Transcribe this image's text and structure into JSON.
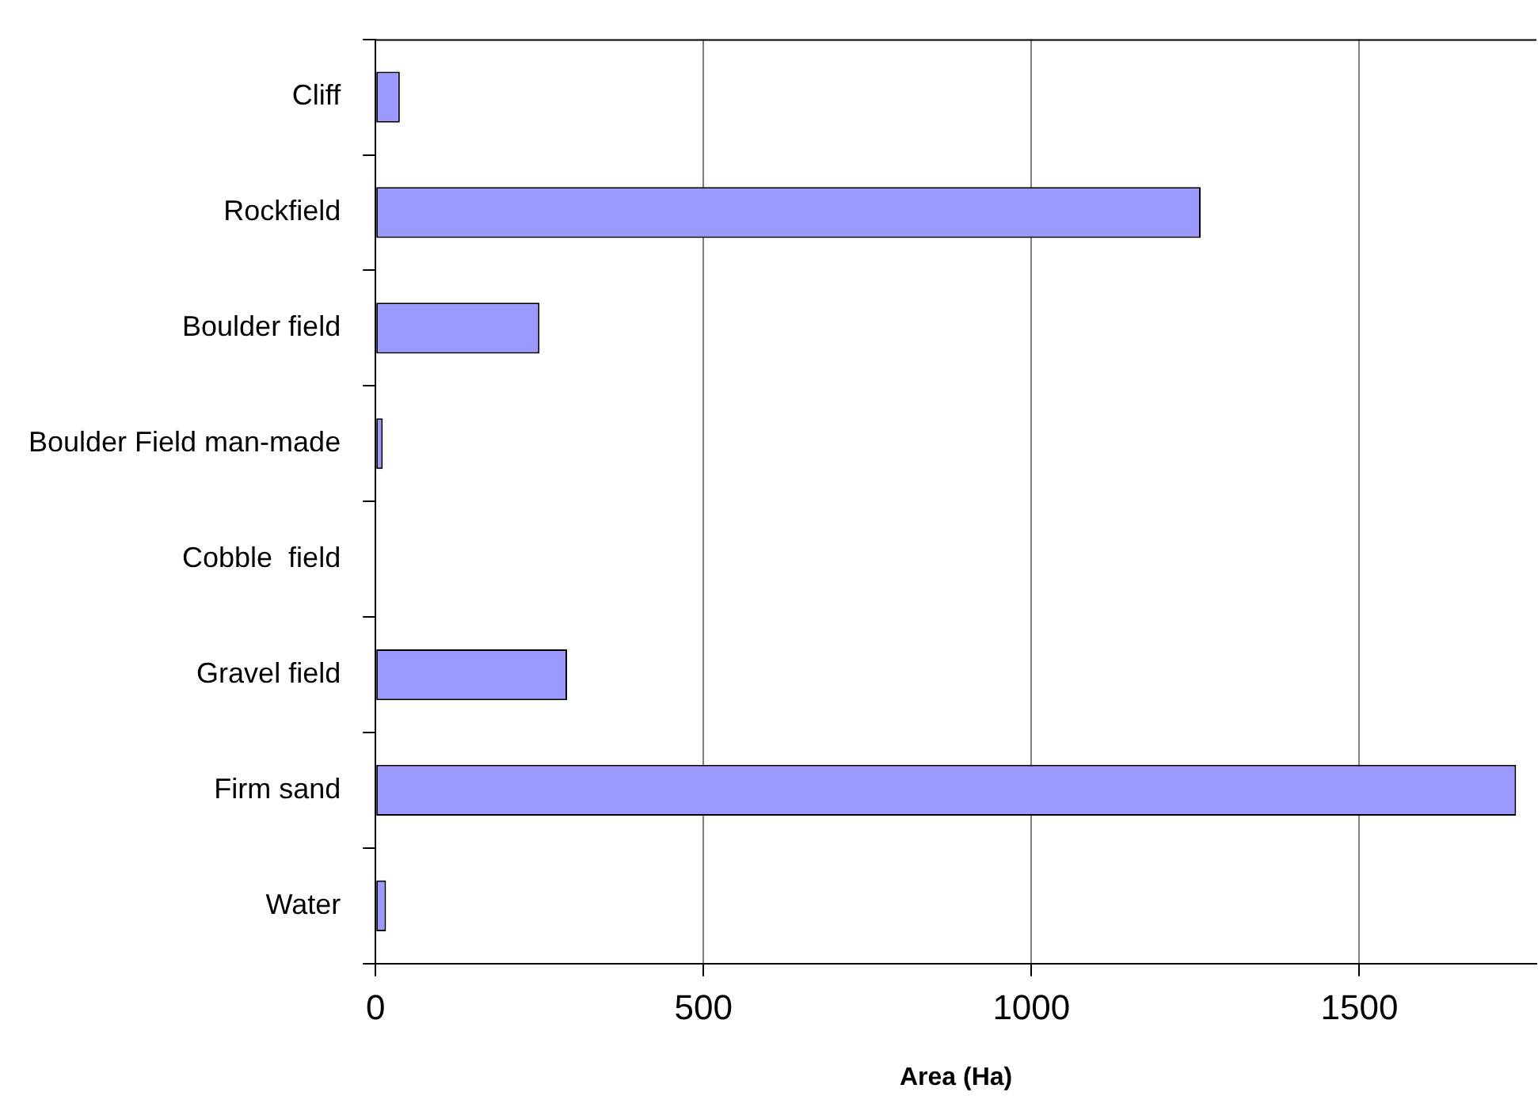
{
  "chart_data": {
    "type": "bar",
    "orientation": "horizontal",
    "xlabel": "Area (Ha)",
    "categories": [
      "Cliff",
      "Rockfield",
      "Boulder field",
      "Boulder Field man-made",
      "Cobble  field",
      "Gravel field",
      "Firm sand",
      "Water"
    ],
    "values": [
      37,
      1258,
      250,
      11,
      0,
      292,
      1739,
      16
    ],
    "color": "#9999ff",
    "xlim": [
      0,
      1770
    ],
    "xticks": [
      0,
      500,
      1000,
      1500
    ],
    "grid": "x",
    "legend": false
  }
}
